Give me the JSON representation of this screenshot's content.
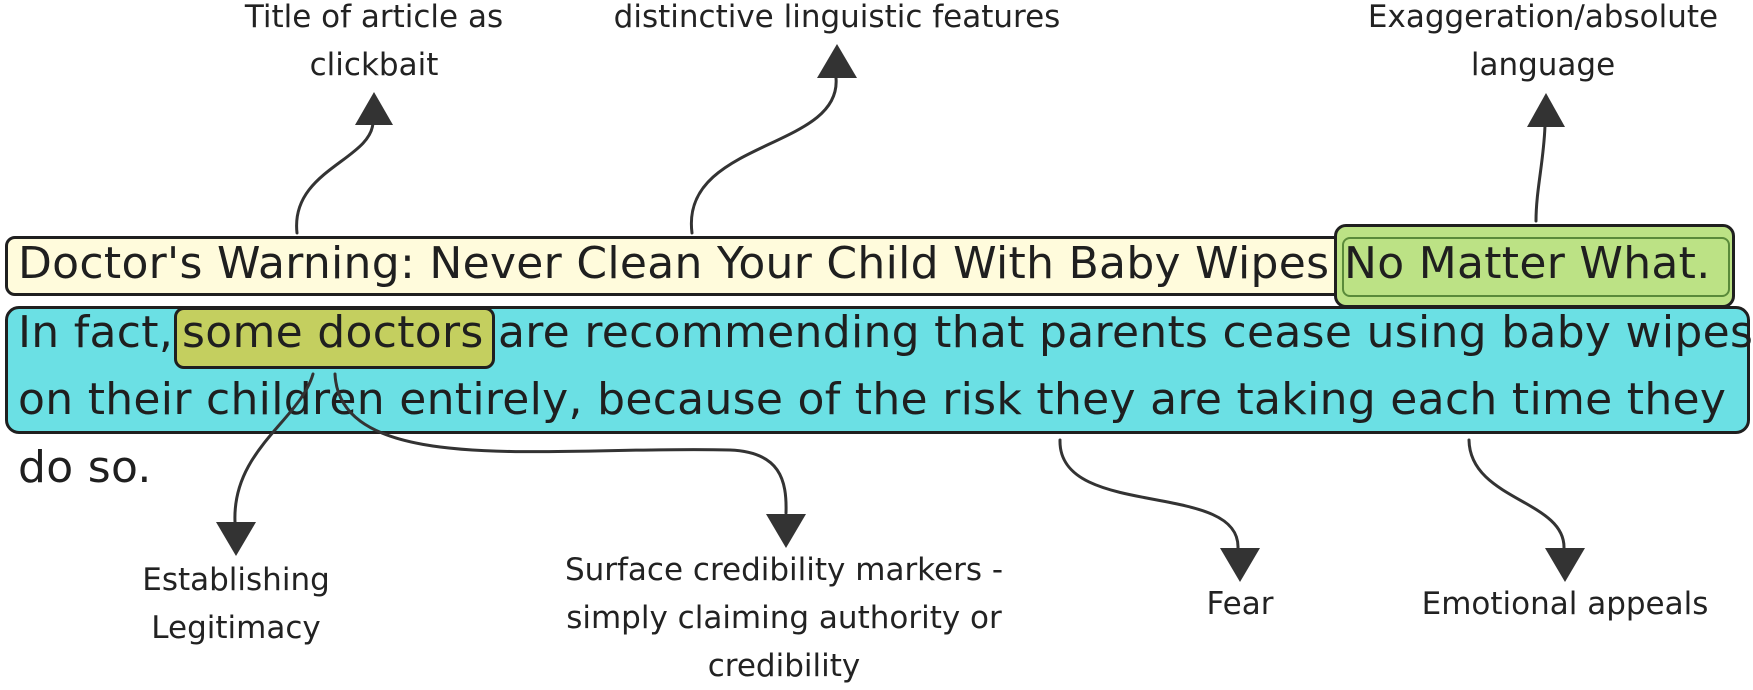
{
  "headline": {
    "main": "Doctor's Warning: Never Clean Your Child With Baby Wipes",
    "highlight": "No Matter What."
  },
  "body_text": {
    "line1_prefix": "In fact,",
    "line1_highlight": "some doctors",
    "line1_rest": "are recommending that parents cease using baby wipes",
    "line2": "on their children entirely, because of the risk they are taking each time they",
    "line3": "do so."
  },
  "annotations": {
    "title_clickbait": "Title of article as\nclickbait",
    "linguistic_features": "distinctive linguistic features",
    "exaggeration": "Exaggeration/absolute\nlanguage",
    "legitimacy": "Establishing\nLegitimacy",
    "credibility_markers": "Surface credibility markers -\nsimply claiming authority or\ncredibility",
    "fear": "Fear",
    "emotional_appeals": "Emotional appeals"
  },
  "colors": {
    "headline_fill": "#fffbdc",
    "body_fill": "#6be0e4",
    "absolute_language_fill": "#bce285",
    "authority_fill": "#c4cf5f",
    "connector": "#333333"
  }
}
